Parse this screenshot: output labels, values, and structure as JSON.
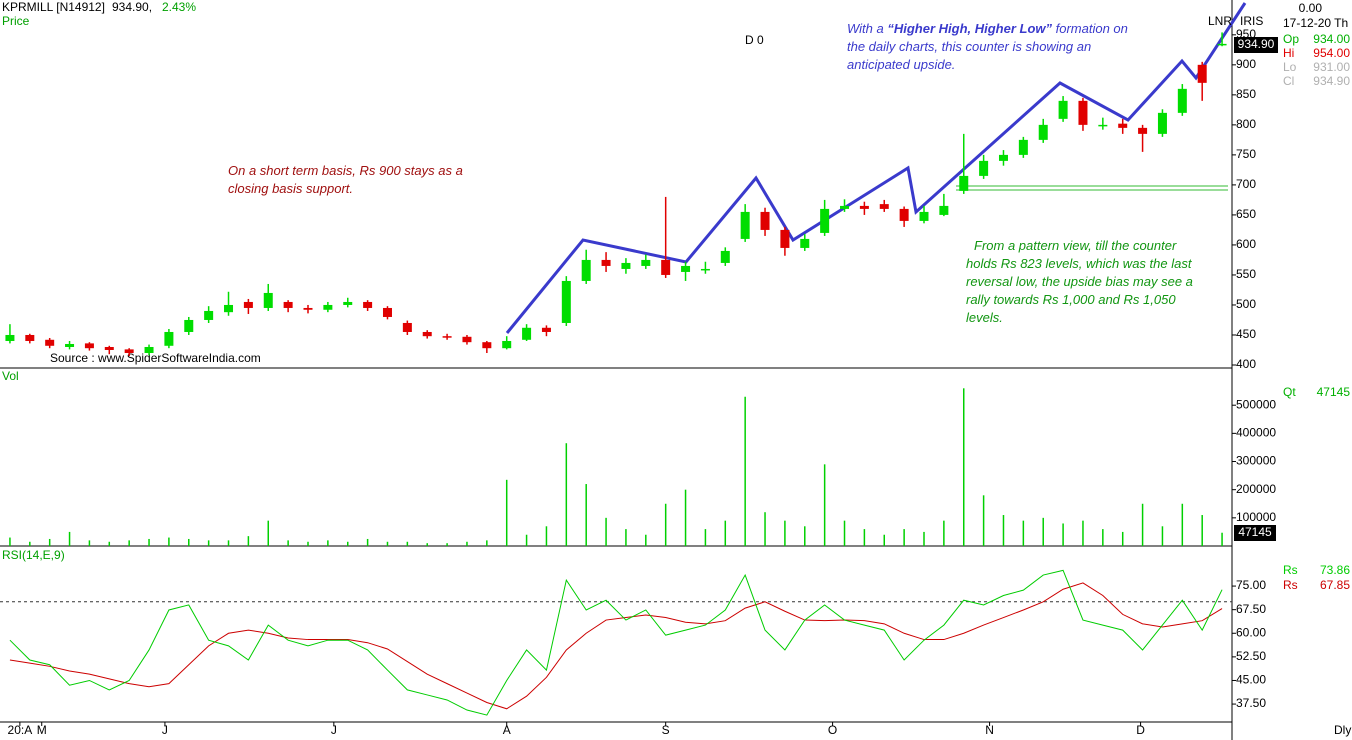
{
  "header": {
    "symbol": "KPRMILL [N14912]",
    "last": "934.90,",
    "change": "2.43%",
    "marker": "D 0",
    "source": "Source : www.SpiderSoftwareIndia.com",
    "periodicity": "Dly"
  },
  "quote": {
    "tags": [
      "LNR",
      "IRIS"
    ],
    "change_value": "0.00",
    "date": "17-12-20 Th",
    "last_label": "934.90",
    "rows": [
      {
        "name": "Op",
        "value": "934.00",
        "color": "#00b000"
      },
      {
        "name": "Hi",
        "value": "954.00",
        "color": "#e00000"
      },
      {
        "name": "Lo",
        "value": "931.00",
        "color": "#b0b0b0"
      },
      {
        "name": "Cl",
        "value": "934.90",
        "color": "#b0b0b0"
      }
    ],
    "volume_label": "Qt"
  },
  "annotations": {
    "blue": [
      "With a ",
      "“Higher High, Higher Low”",
      " formation on the daily charts, this counter is showing an anticipated upside."
    ],
    "red": "On a short term basis, Rs 900 stays as a closing basis support.",
    "green": "From a pattern view, till the counter holds Rs 823 levels, which was the last reversal low, the upside bias may see a rally towards Rs 1,000 and Rs 1,050 levels."
  },
  "chart_data": [
    {
      "type": "candlestick",
      "title": "Price",
      "up_color": "#00dd00",
      "down_color": "#e00000",
      "open": [
        440,
        450,
        442,
        430,
        436,
        430,
        426,
        420,
        432,
        455,
        475,
        488,
        505,
        495,
        505,
        495,
        492,
        500,
        505,
        495,
        470,
        455,
        448,
        447,
        438,
        428,
        442,
        462,
        470,
        540,
        575,
        560,
        565,
        575,
        555,
        560,
        570,
        610,
        655,
        625,
        595,
        620,
        660,
        665,
        668,
        660,
        640,
        650,
        690,
        715,
        740,
        750,
        775,
        810,
        840,
        800,
        802,
        795,
        785,
        820,
        900,
        934
      ],
      "high": [
        468,
        452,
        445,
        440,
        438,
        432,
        428,
        434,
        460,
        480,
        498,
        522,
        510,
        535,
        508,
        500,
        505,
        512,
        508,
        498,
        474,
        458,
        452,
        450,
        440,
        448,
        468,
        466,
        548,
        592,
        588,
        578,
        584,
        680,
        572,
        572,
        596,
        668,
        662,
        630,
        618,
        675,
        676,
        672,
        675,
        664,
        665,
        685,
        785,
        750,
        758,
        780,
        810,
        848,
        845,
        812,
        810,
        800,
        826,
        868,
        905,
        954
      ],
      "low": [
        436,
        436,
        428,
        426,
        424,
        418,
        415,
        416,
        428,
        450,
        470,
        482,
        485,
        490,
        488,
        486,
        488,
        496,
        490,
        476,
        450,
        444,
        442,
        434,
        420,
        426,
        440,
        448,
        465,
        535,
        555,
        552,
        560,
        545,
        540,
        552,
        565,
        605,
        615,
        582,
        590,
        615,
        655,
        650,
        655,
        630,
        636,
        648,
        685,
        710,
        732,
        745,
        770,
        805,
        790,
        792,
        785,
        755,
        780,
        815,
        840,
        931
      ],
      "close": [
        450,
        440,
        432,
        435,
        428,
        425,
        420,
        430,
        455,
        475,
        490,
        500,
        495,
        520,
        495,
        492,
        500,
        505,
        495,
        480,
        455,
        448,
        447,
        438,
        428,
        440,
        462,
        455,
        540,
        575,
        565,
        570,
        575,
        550,
        565,
        560,
        590,
        655,
        625,
        595,
        610,
        660,
        665,
        660,
        660,
        640,
        655,
        665,
        715,
        740,
        750,
        775,
        800,
        840,
        800,
        800,
        795,
        785,
        820,
        860,
        870,
        934.9
      ],
      "ylim": [
        395,
        1008
      ],
      "yticks": [
        400,
        450,
        500,
        550,
        600,
        650,
        700,
        750,
        800,
        850,
        900,
        950
      ],
      "xlim": [
        0,
        62
      ]
    },
    {
      "type": "bar",
      "title": "Vol",
      "color": "#00d000",
      "values": [
        30000,
        15000,
        25000,
        50000,
        20000,
        15000,
        20000,
        25000,
        30000,
        25000,
        20000,
        20000,
        35000,
        90000,
        20000,
        15000,
        20000,
        15000,
        25000,
        15000,
        15000,
        10000,
        10000,
        15000,
        20000,
        235000,
        40000,
        70000,
        365000,
        220000,
        100000,
        60000,
        40000,
        150000,
        200000,
        60000,
        90000,
        530000,
        120000,
        90000,
        70000,
        290000,
        90000,
        60000,
        40000,
        60000,
        50000,
        90000,
        560000,
        180000,
        110000,
        90000,
        100000,
        80000,
        90000,
        60000,
        50000,
        150000,
        70000,
        150000,
        110000,
        47145
      ],
      "ylim": [
        0,
        625000
      ],
      "yticks": [
        100000,
        200000,
        300000,
        400000,
        500000
      ],
      "xlim": [
        0,
        62
      ]
    },
    {
      "type": "line",
      "title": "RSI(14,E,9)",
      "hline": 70,
      "series": [
        {
          "name": "Rs",
          "color": "#00cc00",
          "values": [
            57.8,
            51.5,
            50,
            43.5,
            45,
            42,
            45,
            54.7,
            67.4,
            69,
            57.8,
            56,
            51.5,
            62.6,
            57.8,
            56,
            57.8,
            57.8,
            54.7,
            48.3,
            42,
            40.4,
            38.8,
            35.6,
            34,
            45,
            54.7,
            48.3,
            76.9,
            67.4,
            70.5,
            64.2,
            67.4,
            59.4,
            61,
            62.6,
            67.4,
            78.5,
            61,
            54.7,
            64.2,
            69,
            64.2,
            62.6,
            61,
            51.5,
            57.8,
            62.6,
            70.5,
            69,
            72,
            73.7,
            78.5,
            80,
            64.2,
            62.6,
            61,
            54.7,
            62.6,
            70.5,
            61,
            73.86
          ]
        },
        {
          "name": "Rs",
          "color": "#cc0000",
          "values": [
            51.5,
            50.5,
            49.5,
            48,
            47,
            45.5,
            44,
            43,
            44,
            50,
            56,
            60,
            61,
            60,
            58.5,
            58,
            58,
            58,
            57,
            55,
            51,
            47,
            44,
            41,
            38,
            36,
            40,
            46,
            54.7,
            60,
            64.2,
            65,
            65.8,
            65,
            63.5,
            63,
            64,
            68,
            70,
            67,
            64.2,
            64,
            64.2,
            64,
            63,
            60,
            58,
            58,
            60,
            62.6,
            65,
            67.4,
            70,
            74,
            76,
            72,
            66,
            63,
            62,
            63,
            64,
            67.85
          ]
        }
      ],
      "ylim": [
        31.8,
        87.1
      ],
      "yticks": [
        {
          "value": 37.5,
          "label": "37.50"
        },
        {
          "value": 45,
          "label": "45.00"
        },
        {
          "value": 52.5,
          "label": "52.50"
        },
        {
          "value": 60,
          "label": "60.00"
        },
        {
          "value": 67.5,
          "label": "67.50"
        },
        {
          "value": 75,
          "label": "75.00"
        }
      ],
      "xlim": [
        0,
        62
      ],
      "xticks": [
        {
          "value": 1,
          "label": "20:A"
        },
        {
          "value": 2.1,
          "label": "M"
        },
        {
          "value": 8.3,
          "label": "J"
        },
        {
          "value": 16.8,
          "label": "J"
        },
        {
          "value": 25.5,
          "label": "A"
        },
        {
          "value": 33.5,
          "label": "S"
        },
        {
          "value": 41.9,
          "label": "O"
        },
        {
          "value": 49.8,
          "label": "N"
        },
        {
          "value": 57.4,
          "label": "D"
        }
      ]
    }
  ]
}
